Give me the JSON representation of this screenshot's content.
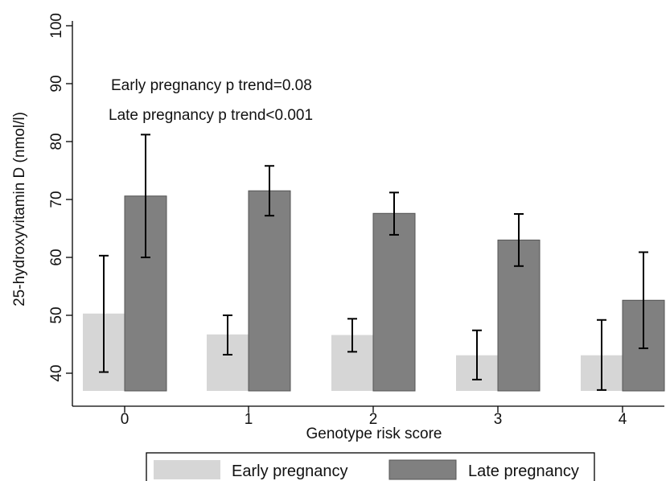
{
  "chart_data": {
    "type": "bar",
    "xlabel": "Genotype risk score",
    "ylabel": "25-hydroxyvitamin D (nmol/l)",
    "categories": [
      "0",
      "1",
      "2",
      "3",
      "4"
    ],
    "ylim": [
      37,
      101
    ],
    "yticks": [
      "40",
      "50",
      "60",
      "70",
      "80",
      "90",
      "100"
    ],
    "grid": false,
    "legend_position": "bottom",
    "annotations": [
      "Early pregnancy p trend=0.08",
      "Late pregnancy p trend<0.001"
    ],
    "series": [
      {
        "name": "Early pregnancy",
        "color": "#d6d6d6",
        "values": [
          50.3,
          46.7,
          46.6,
          43.1,
          43.1
        ],
        "ci_low": [
          40.2,
          43.2,
          43.7,
          38.9,
          37.1
        ],
        "ci_high": [
          60.3,
          50.0,
          49.4,
          47.4,
          49.2
        ]
      },
      {
        "name": "Late pregnancy",
        "color": "#808080",
        "values": [
          70.6,
          71.5,
          67.6,
          63.0,
          52.6
        ],
        "ci_low": [
          60.0,
          67.2,
          63.9,
          58.5,
          44.3
        ],
        "ci_high": [
          81.2,
          75.8,
          71.2,
          67.5,
          60.9
        ]
      }
    ]
  }
}
